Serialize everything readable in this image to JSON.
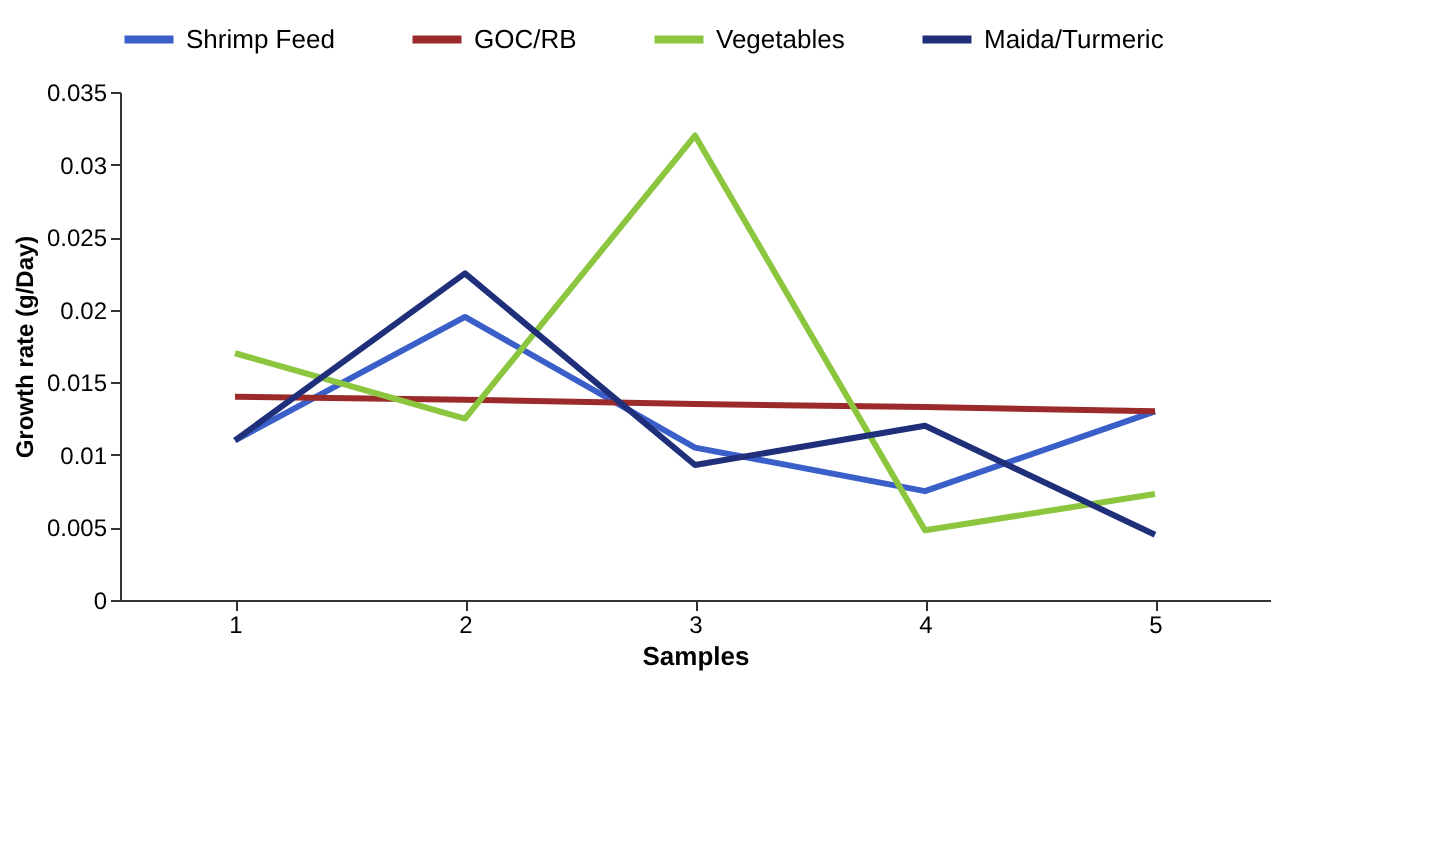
{
  "chart_data": {
    "type": "line",
    "xlabel": "Samples",
    "ylabel": "Growth rate (g/Day)",
    "categories": [
      "1",
      "2",
      "3",
      "4",
      "5"
    ],
    "series": [
      {
        "name": "Shrimp Feed",
        "color": "#3a5fc8",
        "values": [
          0.011,
          0.0195,
          0.0105,
          0.0075,
          0.013
        ]
      },
      {
        "name": "GOC/RB",
        "color": "#9b2a2a",
        "values": [
          0.014,
          0.0138,
          0.0135,
          0.0133,
          0.013
        ]
      },
      {
        "name": "Vegetables",
        "color": "#8cc63f",
        "values": [
          0.017,
          0.0125,
          0.032,
          0.0048,
          0.0073
        ]
      },
      {
        "name": "Maida/Turmeric",
        "color": "#1f2f7a",
        "values": [
          0.011,
          0.0225,
          0.0093,
          0.012,
          0.0045
        ]
      }
    ],
    "ylim": [
      0,
      0.035
    ],
    "yticks": [
      0,
      0.005,
      0.01,
      0.015,
      0.02,
      0.025,
      0.03,
      0.035
    ],
    "legend": "top",
    "grid": false,
    "marker": "none",
    "line_style": "solid"
  }
}
